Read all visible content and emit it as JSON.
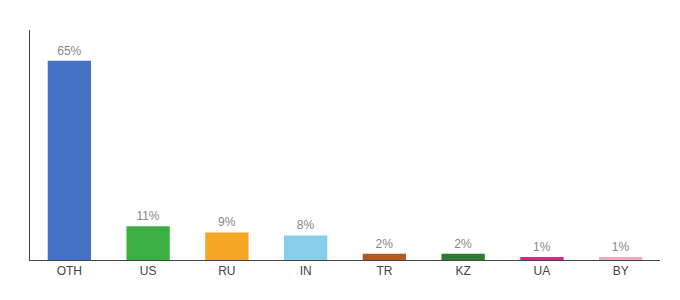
{
  "chart_data": {
    "type": "bar",
    "categories": [
      "OTH",
      "US",
      "RU",
      "IN",
      "TR",
      "KZ",
      "UA",
      "BY"
    ],
    "values": [
      65,
      11,
      9,
      8,
      2,
      2,
      1,
      1
    ],
    "value_labels": [
      "65%",
      "11%",
      "9%",
      "8%",
      "2%",
      "2%",
      "1%",
      "1%"
    ],
    "data_labels": true,
    "colors": [
      "#4472c4",
      "#3cb043",
      "#f5a623",
      "#87ceeb",
      "#b35a1f",
      "#2e7d32",
      "#e91e8c",
      "#f4a8c0"
    ],
    "ylim": [
      0,
      75
    ],
    "tick_labels": "x",
    "grid": false
  }
}
